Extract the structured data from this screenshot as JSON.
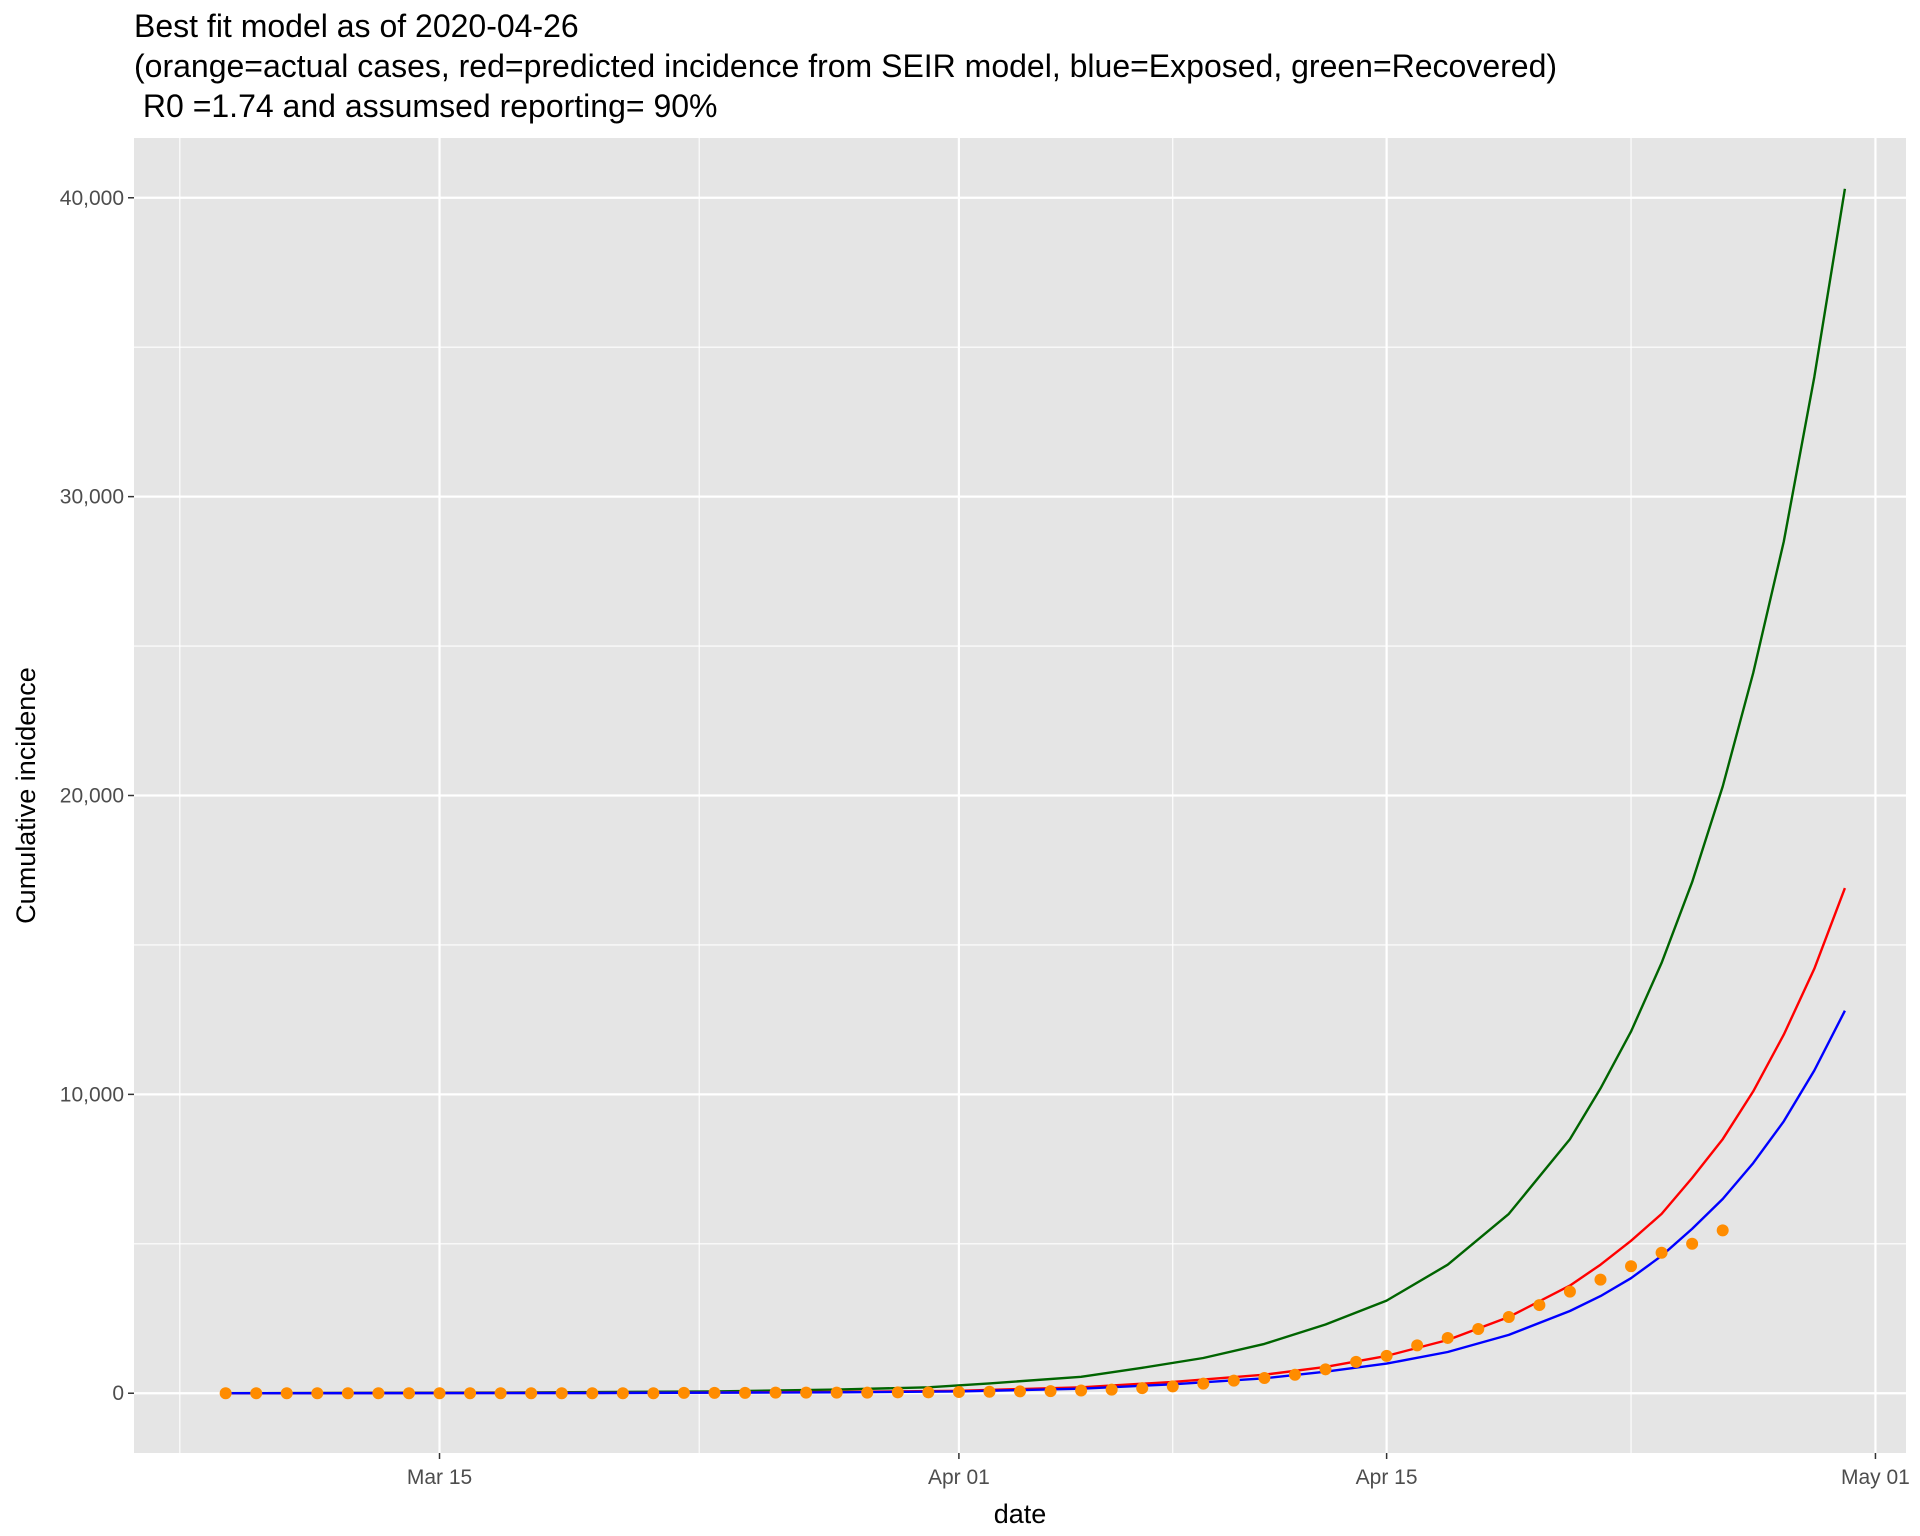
{
  "title": {
    "line1": "Best fit model as of 2020-04-26",
    "line2": "(orange=actual cases, red=predicted incidence from SEIR model, blue=Exposed, green=Recovered)",
    "line3": " R0 =1.74 and assumsed reporting= 90%"
  },
  "chart_data": {
    "type": "line",
    "xlabel": "date",
    "ylabel": "Cumulative incidence",
    "x_axis": {
      "type": "date",
      "range": [
        "2020-03-05",
        "2020-05-02"
      ],
      "ticks": [
        {
          "date": "2020-03-15",
          "label": "Mar 15"
        },
        {
          "date": "2020-04-01",
          "label": "Apr 01"
        },
        {
          "date": "2020-04-15",
          "label": "Apr 15"
        },
        {
          "date": "2020-05-01",
          "label": "May 01"
        }
      ]
    },
    "y_axis": {
      "range": [
        -2000,
        42000
      ],
      "ticks": [
        {
          "value": 0,
          "label": "0"
        },
        {
          "value": 10000,
          "label": "10,000"
        },
        {
          "value": 20000,
          "label": "20,000"
        },
        {
          "value": 30000,
          "label": "30,000"
        },
        {
          "value": 40000,
          "label": "40,000"
        }
      ]
    },
    "grid": true,
    "background": "#e5e5e5",
    "series": [
      {
        "color": "#006400",
        "kind": "line",
        "points": [
          [
            "2020-03-08",
            0
          ],
          [
            "2020-03-17",
            20
          ],
          [
            "2020-03-24",
            60
          ],
          [
            "2020-03-28",
            120
          ],
          [
            "2020-03-31",
            200
          ],
          [
            "2020-04-02",
            330
          ],
          [
            "2020-04-05",
            550
          ],
          [
            "2020-04-07",
            850
          ],
          [
            "2020-04-09",
            1180
          ],
          [
            "2020-04-11",
            1650
          ],
          [
            "2020-04-13",
            2300
          ],
          [
            "2020-04-15",
            3100
          ],
          [
            "2020-04-17",
            4300
          ],
          [
            "2020-04-19",
            6000
          ],
          [
            "2020-04-21",
            8500
          ],
          [
            "2020-04-22",
            10200
          ],
          [
            "2020-04-23",
            12100
          ],
          [
            "2020-04-24",
            14400
          ],
          [
            "2020-04-25",
            17100
          ],
          [
            "2020-04-26",
            20300
          ],
          [
            "2020-04-27",
            24100
          ],
          [
            "2020-04-28",
            28500
          ],
          [
            "2020-04-29",
            34000
          ],
          [
            "2020-04-30",
            40300
          ]
        ]
      },
      {
        "color": "#ff0000",
        "kind": "line",
        "points": [
          [
            "2020-03-08",
            0
          ],
          [
            "2020-03-20",
            10
          ],
          [
            "2020-03-28",
            40
          ],
          [
            "2020-04-01",
            80
          ],
          [
            "2020-04-05",
            200
          ],
          [
            "2020-04-08",
            380
          ],
          [
            "2020-04-11",
            620
          ],
          [
            "2020-04-13",
            880
          ],
          [
            "2020-04-15",
            1250
          ],
          [
            "2020-04-17",
            1780
          ],
          [
            "2020-04-19",
            2550
          ],
          [
            "2020-04-21",
            3600
          ],
          [
            "2020-04-22",
            4300
          ],
          [
            "2020-04-23",
            5100
          ],
          [
            "2020-04-24",
            6000
          ],
          [
            "2020-04-25",
            7200
          ],
          [
            "2020-04-26",
            8500
          ],
          [
            "2020-04-27",
            10100
          ],
          [
            "2020-04-28",
            12000
          ],
          [
            "2020-04-29",
            14200
          ],
          [
            "2020-04-30",
            16900
          ]
        ]
      },
      {
        "color": "#0000ff",
        "kind": "line",
        "points": [
          [
            "2020-03-08",
            0
          ],
          [
            "2020-03-20",
            8
          ],
          [
            "2020-03-28",
            30
          ],
          [
            "2020-04-01",
            60
          ],
          [
            "2020-04-05",
            150
          ],
          [
            "2020-04-08",
            300
          ],
          [
            "2020-04-11",
            500
          ],
          [
            "2020-04-13",
            720
          ],
          [
            "2020-04-15",
            990
          ],
          [
            "2020-04-17",
            1380
          ],
          [
            "2020-04-19",
            1950
          ],
          [
            "2020-04-21",
            2750
          ],
          [
            "2020-04-22",
            3250
          ],
          [
            "2020-04-23",
            3850
          ],
          [
            "2020-04-24",
            4600
          ],
          [
            "2020-04-25",
            5500
          ],
          [
            "2020-04-26",
            6500
          ],
          [
            "2020-04-27",
            7700
          ],
          [
            "2020-04-28",
            9100
          ],
          [
            "2020-04-29",
            10800
          ],
          [
            "2020-04-30",
            12800
          ]
        ]
      },
      {
        "color": "#ff8c00",
        "kind": "points",
        "points": [
          [
            "2020-03-08",
            0
          ],
          [
            "2020-03-09",
            0
          ],
          [
            "2020-03-10",
            0
          ],
          [
            "2020-03-11",
            0
          ],
          [
            "2020-03-12",
            0
          ],
          [
            "2020-03-13",
            0
          ],
          [
            "2020-03-14",
            0
          ],
          [
            "2020-03-15",
            0
          ],
          [
            "2020-03-16",
            0
          ],
          [
            "2020-03-17",
            0
          ],
          [
            "2020-03-18",
            0
          ],
          [
            "2020-03-19",
            0
          ],
          [
            "2020-03-20",
            0
          ],
          [
            "2020-03-21",
            0
          ],
          [
            "2020-03-22",
            0
          ],
          [
            "2020-03-23",
            10
          ],
          [
            "2020-03-24",
            10
          ],
          [
            "2020-03-25",
            10
          ],
          [
            "2020-03-26",
            20
          ],
          [
            "2020-03-27",
            20
          ],
          [
            "2020-03-28",
            20
          ],
          [
            "2020-03-29",
            20
          ],
          [
            "2020-03-30",
            30
          ],
          [
            "2020-03-31",
            30
          ],
          [
            "2020-04-01",
            40
          ],
          [
            "2020-04-02",
            50
          ],
          [
            "2020-04-03",
            60
          ],
          [
            "2020-04-04",
            70
          ],
          [
            "2020-04-05",
            90
          ],
          [
            "2020-04-06",
            120
          ],
          [
            "2020-04-07",
            170
          ],
          [
            "2020-04-08",
            230
          ],
          [
            "2020-04-09",
            320
          ],
          [
            "2020-04-10",
            420
          ],
          [
            "2020-04-11",
            510
          ],
          [
            "2020-04-12",
            620
          ],
          [
            "2020-04-13",
            800
          ],
          [
            "2020-04-14",
            1050
          ],
          [
            "2020-04-15",
            1250
          ],
          [
            "2020-04-16",
            1600
          ],
          [
            "2020-04-17",
            1850
          ],
          [
            "2020-04-18",
            2150
          ],
          [
            "2020-04-19",
            2550
          ],
          [
            "2020-04-20",
            2950
          ],
          [
            "2020-04-21",
            3400
          ],
          [
            "2020-04-22",
            3800
          ],
          [
            "2020-04-23",
            4250
          ],
          [
            "2020-04-24",
            4700
          ],
          [
            "2020-04-25",
            5000
          ],
          [
            "2020-04-26",
            5450
          ]
        ]
      }
    ]
  }
}
